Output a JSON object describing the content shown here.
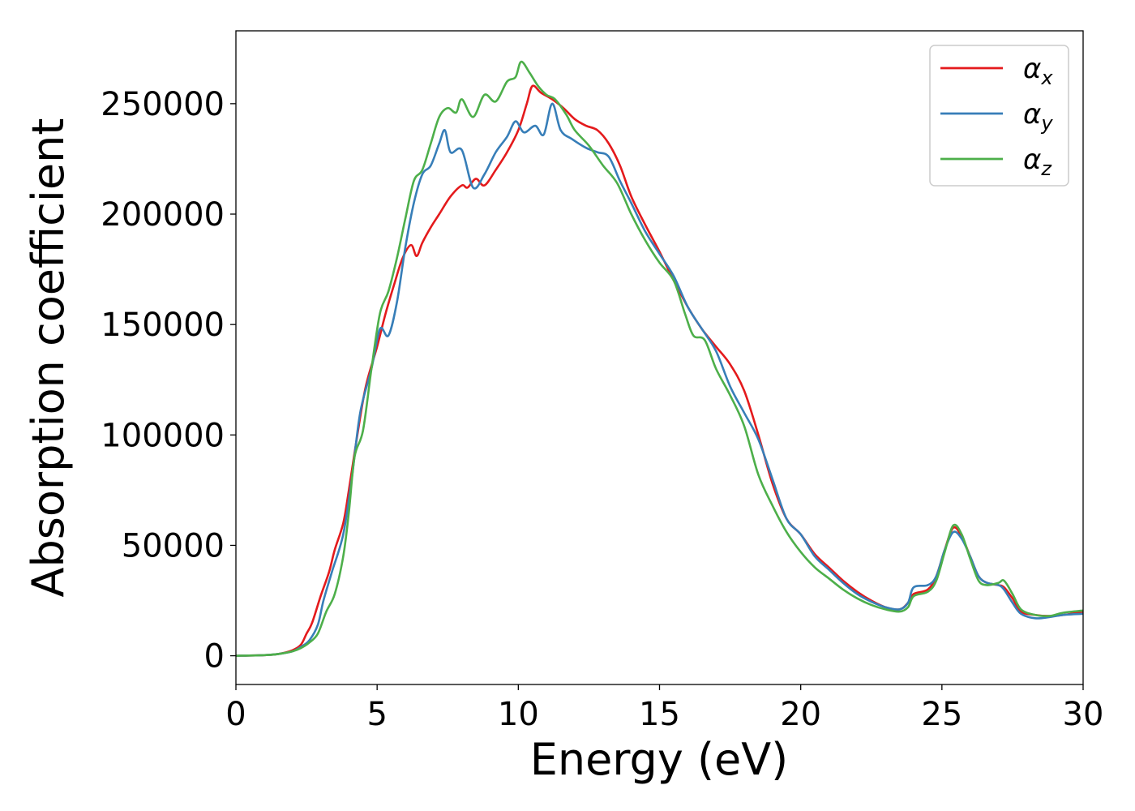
{
  "chart_data": {
    "type": "line",
    "xlabel": "Energy (eV)",
    "ylabel": "Absorption coefficient",
    "xlim": [
      0,
      30
    ],
    "ylim": [
      -13000,
      283000
    ],
    "xticks": [
      0,
      5,
      10,
      15,
      20,
      25,
      30
    ],
    "xtick_labels": [
      "0",
      "5",
      "10",
      "15",
      "20",
      "25",
      "30"
    ],
    "yticks": [
      0,
      50000,
      100000,
      150000,
      200000,
      250000
    ],
    "ytick_labels": [
      "0",
      "50000",
      "100000",
      "150000",
      "200000",
      "250000"
    ],
    "grid": false,
    "legend_position": "top-right",
    "series": [
      {
        "name": "α_x",
        "label_main": "α",
        "label_sub": "x",
        "color": "#e41a1c",
        "points": [
          [
            0,
            0
          ],
          [
            1,
            300
          ],
          [
            1.5,
            800
          ],
          [
            2,
            2500
          ],
          [
            2.3,
            5000
          ],
          [
            2.5,
            10000
          ],
          [
            2.7,
            15000
          ],
          [
            3,
            27000
          ],
          [
            3.3,
            38000
          ],
          [
            3.5,
            48000
          ],
          [
            3.8,
            60000
          ],
          [
            4,
            75000
          ],
          [
            4.3,
            100000
          ],
          [
            4.6,
            122000
          ],
          [
            5,
            140000
          ],
          [
            5.3,
            155000
          ],
          [
            5.6,
            168000
          ],
          [
            5.9,
            180000
          ],
          [
            6.2,
            186000
          ],
          [
            6.4,
            181000
          ],
          [
            6.6,
            187000
          ],
          [
            6.9,
            194000
          ],
          [
            7.2,
            200000
          ],
          [
            7.6,
            208000
          ],
          [
            8,
            213000
          ],
          [
            8.2,
            212000
          ],
          [
            8.5,
            216000
          ],
          [
            8.8,
            213000
          ],
          [
            9.2,
            220000
          ],
          [
            9.6,
            228000
          ],
          [
            10,
            238000
          ],
          [
            10.3,
            250000
          ],
          [
            10.5,
            258000
          ],
          [
            10.8,
            255000
          ],
          [
            11.2,
            252000
          ],
          [
            11.6,
            248000
          ],
          [
            12,
            243000
          ],
          [
            12.4,
            240000
          ],
          [
            12.8,
            238000
          ],
          [
            13.2,
            232000
          ],
          [
            13.6,
            222000
          ],
          [
            14,
            208000
          ],
          [
            14.5,
            195000
          ],
          [
            15,
            183000
          ],
          [
            15.5,
            170000
          ],
          [
            16,
            158000
          ],
          [
            16.5,
            148000
          ],
          [
            17,
            140000
          ],
          [
            17.5,
            132000
          ],
          [
            18,
            120000
          ],
          [
            18.5,
            100000
          ],
          [
            19,
            78000
          ],
          [
            19.5,
            62000
          ],
          [
            20,
            55000
          ],
          [
            20.5,
            46000
          ],
          [
            21,
            40000
          ],
          [
            21.5,
            34000
          ],
          [
            22,
            29000
          ],
          [
            22.5,
            25000
          ],
          [
            23,
            22000
          ],
          [
            23.5,
            21000
          ],
          [
            23.8,
            24000
          ],
          [
            24,
            28000
          ],
          [
            24.5,
            30000
          ],
          [
            24.8,
            36000
          ],
          [
            25.1,
            48000
          ],
          [
            25.4,
            58000
          ],
          [
            25.7,
            54000
          ],
          [
            26,
            45000
          ],
          [
            26.3,
            36000
          ],
          [
            26.6,
            33000
          ],
          [
            27,
            32000
          ],
          [
            27.2,
            31000
          ],
          [
            27.5,
            26000
          ],
          [
            27.8,
            20000
          ],
          [
            28.3,
            18500
          ],
          [
            28.8,
            18000
          ],
          [
            29.3,
            18500
          ],
          [
            30,
            20000
          ]
        ]
      },
      {
        "name": "α_y",
        "label_main": "α",
        "label_sub": "y",
        "color": "#377eb8",
        "points": [
          [
            0,
            0
          ],
          [
            1,
            300
          ],
          [
            1.5,
            800
          ],
          [
            2,
            2000
          ],
          [
            2.3,
            4000
          ],
          [
            2.6,
            7000
          ],
          [
            2.9,
            14000
          ],
          [
            3.1,
            25000
          ],
          [
            3.4,
            38000
          ],
          [
            3.8,
            55000
          ],
          [
            4.1,
            80000
          ],
          [
            4.4,
            110000
          ],
          [
            4.8,
            130000
          ],
          [
            5.1,
            148000
          ],
          [
            5.4,
            145000
          ],
          [
            5.7,
            160000
          ],
          [
            6,
            185000
          ],
          [
            6.3,
            205000
          ],
          [
            6.6,
            218000
          ],
          [
            6.9,
            222000
          ],
          [
            7.2,
            232000
          ],
          [
            7.4,
            238000
          ],
          [
            7.6,
            228000
          ],
          [
            8,
            229000
          ],
          [
            8.4,
            212000
          ],
          [
            8.8,
            218000
          ],
          [
            9.2,
            228000
          ],
          [
            9.6,
            235000
          ],
          [
            9.9,
            242000
          ],
          [
            10.2,
            237000
          ],
          [
            10.6,
            240000
          ],
          [
            10.9,
            236000
          ],
          [
            11.2,
            250000
          ],
          [
            11.5,
            238000
          ],
          [
            11.9,
            234000
          ],
          [
            12.4,
            230000
          ],
          [
            12.8,
            228000
          ],
          [
            13.2,
            226000
          ],
          [
            13.6,
            215000
          ],
          [
            14,
            205000
          ],
          [
            14.5,
            192000
          ],
          [
            15,
            182000
          ],
          [
            15.5,
            172000
          ],
          [
            16,
            158000
          ],
          [
            16.5,
            148000
          ],
          [
            17,
            138000
          ],
          [
            17.5,
            122000
          ],
          [
            18,
            110000
          ],
          [
            18.5,
            98000
          ],
          [
            19,
            80000
          ],
          [
            19.5,
            62000
          ],
          [
            20,
            55000
          ],
          [
            20.5,
            45000
          ],
          [
            21,
            39000
          ],
          [
            21.5,
            33000
          ],
          [
            22,
            28000
          ],
          [
            22.5,
            24500
          ],
          [
            23,
            22000
          ],
          [
            23.5,
            21000
          ],
          [
            23.8,
            24000
          ],
          [
            24,
            31000
          ],
          [
            24.5,
            32000
          ],
          [
            24.8,
            36000
          ],
          [
            25.1,
            48000
          ],
          [
            25.4,
            56000
          ],
          [
            25.7,
            53000
          ],
          [
            26,
            45000
          ],
          [
            26.3,
            36000
          ],
          [
            26.6,
            33000
          ],
          [
            27,
            32000
          ],
          [
            27.2,
            30000
          ],
          [
            27.5,
            24000
          ],
          [
            27.8,
            19000
          ],
          [
            28.3,
            17000
          ],
          [
            28.8,
            17500
          ],
          [
            29.3,
            18500
          ],
          [
            30,
            19000
          ]
        ]
      },
      {
        "name": "α_z",
        "label_main": "α",
        "label_sub": "z",
        "color": "#4daf4a",
        "points": [
          [
            0,
            0
          ],
          [
            1,
            300
          ],
          [
            1.5,
            800
          ],
          [
            2,
            2000
          ],
          [
            2.3,
            3500
          ],
          [
            2.6,
            6000
          ],
          [
            2.9,
            10000
          ],
          [
            3.2,
            20000
          ],
          [
            3.5,
            28000
          ],
          [
            3.8,
            45000
          ],
          [
            4,
            65000
          ],
          [
            4.2,
            90000
          ],
          [
            4.5,
            102000
          ],
          [
            4.8,
            130000
          ],
          [
            5.1,
            155000
          ],
          [
            5.4,
            165000
          ],
          [
            5.7,
            180000
          ],
          [
            6,
            198000
          ],
          [
            6.3,
            215000
          ],
          [
            6.6,
            220000
          ],
          [
            6.9,
            232000
          ],
          [
            7.2,
            244000
          ],
          [
            7.5,
            248000
          ],
          [
            7.8,
            246000
          ],
          [
            8,
            252000
          ],
          [
            8.4,
            244000
          ],
          [
            8.8,
            254000
          ],
          [
            9.2,
            251000
          ],
          [
            9.6,
            260000
          ],
          [
            9.9,
            262000
          ],
          [
            10.1,
            269000
          ],
          [
            10.4,
            264000
          ],
          [
            10.7,
            258000
          ],
          [
            11,
            254000
          ],
          [
            11.3,
            252000
          ],
          [
            11.7,
            245000
          ],
          [
            12,
            238000
          ],
          [
            12.5,
            231000
          ],
          [
            13,
            222000
          ],
          [
            13.5,
            214000
          ],
          [
            14,
            200000
          ],
          [
            14.5,
            188000
          ],
          [
            15,
            178000
          ],
          [
            15.5,
            170000
          ],
          [
            15.9,
            155000
          ],
          [
            16.2,
            145000
          ],
          [
            16.6,
            143000
          ],
          [
            17,
            130000
          ],
          [
            17.5,
            118000
          ],
          [
            18,
            104000
          ],
          [
            18.5,
            82000
          ],
          [
            19,
            68000
          ],
          [
            19.5,
            56000
          ],
          [
            20,
            47000
          ],
          [
            20.5,
            40000
          ],
          [
            21,
            35000
          ],
          [
            21.5,
            30000
          ],
          [
            22,
            26000
          ],
          [
            22.5,
            23000
          ],
          [
            23,
            21000
          ],
          [
            23.5,
            20000
          ],
          [
            23.8,
            22000
          ],
          [
            24,
            27000
          ],
          [
            24.5,
            29000
          ],
          [
            24.8,
            34000
          ],
          [
            25.1,
            47000
          ],
          [
            25.4,
            59000
          ],
          [
            25.7,
            55000
          ],
          [
            26,
            44000
          ],
          [
            26.3,
            34000
          ],
          [
            26.6,
            32000
          ],
          [
            27,
            33000
          ],
          [
            27.2,
            34000
          ],
          [
            27.5,
            28000
          ],
          [
            27.8,
            21000
          ],
          [
            28.3,
            18500
          ],
          [
            28.8,
            18000
          ],
          [
            29.3,
            19500
          ],
          [
            30,
            20500
          ]
        ]
      }
    ]
  }
}
